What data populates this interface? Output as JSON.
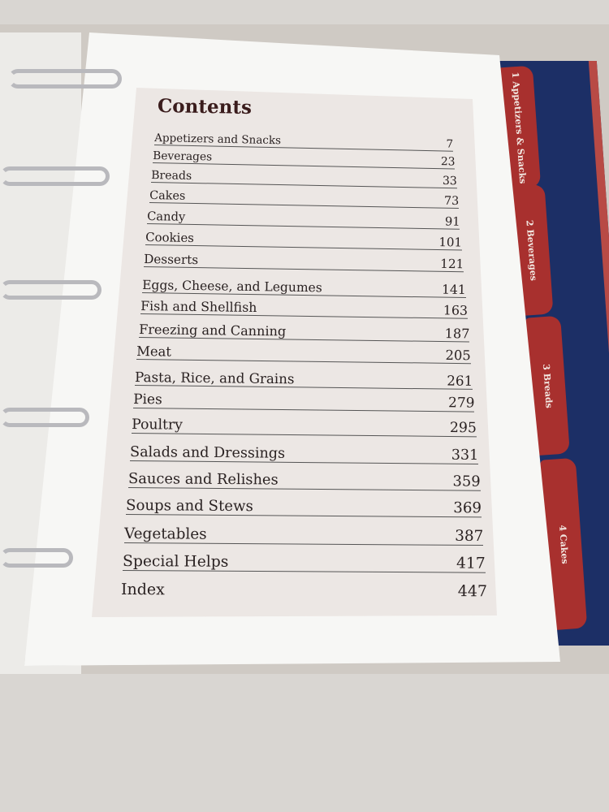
{
  "contents": {
    "title": "Contents",
    "entries": [
      {
        "label": "Appetizers and Snacks",
        "page": "7"
      },
      {
        "label": "Beverages",
        "page": "23"
      },
      {
        "label": "Breads",
        "page": "33"
      },
      {
        "label": "Cakes",
        "page": "73"
      },
      {
        "label": "Candy",
        "page": "91"
      },
      {
        "label": "Cookies",
        "page": "101"
      },
      {
        "label": "Desserts",
        "page": "121"
      },
      {
        "label": "Eggs, Cheese, and Legumes",
        "page": "141"
      },
      {
        "label": "Fish and Shellfish",
        "page": "163"
      },
      {
        "label": "Freezing and Canning",
        "page": "187"
      },
      {
        "label": "Meat",
        "page": "205"
      },
      {
        "label": "Pasta, Rice, and Grains",
        "page": "261"
      },
      {
        "label": "Pies",
        "page": "279"
      },
      {
        "label": "Poultry",
        "page": "295"
      },
      {
        "label": "Salads and Dressings",
        "page": "331"
      },
      {
        "label": "Sauces and Relishes",
        "page": "359"
      },
      {
        "label": "Soups and Stews",
        "page": "369"
      },
      {
        "label": "Vegetables",
        "page": "387"
      },
      {
        "label": "Special Helps",
        "page": "417"
      },
      {
        "label": "Index",
        "page": "447"
      }
    ]
  },
  "tabs": [
    {
      "label": "1 Appetizers & Snacks"
    },
    {
      "label": "2 Beverages"
    },
    {
      "label": "3 Breads"
    },
    {
      "label": "4 Cakes"
    }
  ],
  "colors": {
    "tab": "#a8302e",
    "cover": "#1c2f66",
    "heading": "#3a1c1c"
  }
}
